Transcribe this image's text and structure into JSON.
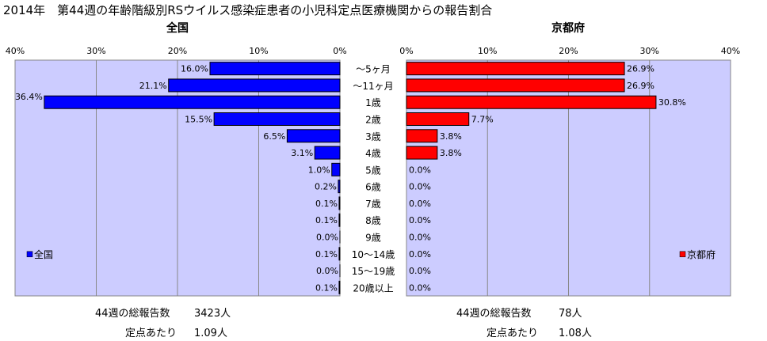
{
  "title": "2014年　第44週の年齢階級別RSウイルス感染症患者の小児科定点医療機関からの報告割合",
  "chart_data": [
    {
      "type": "bar",
      "orientation": "horizontal",
      "direction": "right-to-left",
      "title": "全国",
      "categories": [
        "〜5ヶ月",
        "〜11ヶ月",
        "1歳",
        "2歳",
        "3歳",
        "4歳",
        "5歳",
        "6歳",
        "7歳",
        "8歳",
        "9歳",
        "10〜14歳",
        "15〜19歳",
        "20歳以上"
      ],
      "values": [
        16.0,
        21.1,
        36.4,
        15.5,
        6.5,
        3.1,
        1.0,
        0.2,
        0.1,
        0.1,
        0.0,
        0.1,
        0.0,
        0.1
      ],
      "value_labels": [
        "16.0%",
        "21.1%",
        "36.4%",
        "15.5%",
        "6.5%",
        "3.1%",
        "1.0%",
        "0.2%",
        "0.1%",
        "0.1%",
        "0.0%",
        "0.1%",
        "0.0%",
        "0.1%"
      ],
      "xlim": [
        0,
        40
      ],
      "ticks": [
        "40%",
        "30%",
        "20%",
        "10%",
        "0%"
      ],
      "tick_values": [
        40,
        30,
        20,
        10,
        0
      ],
      "grid": true,
      "legend": "bottom-left",
      "series": [
        {
          "name": "全国",
          "color": "#0000ff"
        }
      ]
    },
    {
      "type": "bar",
      "orientation": "horizontal",
      "direction": "left-to-right",
      "title": "京都府",
      "categories": [
        "〜5ヶ月",
        "〜11ヶ月",
        "1歳",
        "2歳",
        "3歳",
        "4歳",
        "5歳",
        "6歳",
        "7歳",
        "8歳",
        "9歳",
        "10〜14歳",
        "15〜19歳",
        "20歳以上"
      ],
      "values": [
        26.9,
        26.9,
        30.8,
        7.7,
        3.8,
        3.8,
        0.0,
        0.0,
        0.0,
        0.0,
        0.0,
        0.0,
        0.0,
        0.0
      ],
      "value_labels": [
        "26.9%",
        "26.9%",
        "30.8%",
        "7.7%",
        "3.8%",
        "3.8%",
        "0.0%",
        "0.0%",
        "0.0%",
        "0.0%",
        "0.0%",
        "0.0%",
        "0.0%",
        "0.0%"
      ],
      "xlim": [
        0,
        40
      ],
      "ticks": [
        "0%",
        "10%",
        "20%",
        "30%",
        "40%"
      ],
      "tick_values": [
        0,
        10,
        20,
        30,
        40
      ],
      "grid": true,
      "legend": "bottom-right",
      "series": [
        {
          "name": "京都府",
          "color": "#ff0000"
        }
      ]
    }
  ],
  "footer": {
    "national_total_label": "44週の総報告数",
    "national_total_value": "3423人",
    "national_per_label": "定点あたり",
    "national_per_value": "1.09人",
    "kyoto_total_label": "44週の総報告数",
    "kyoto_total_value": "78人",
    "kyoto_per_label": "定点あたり",
    "kyoto_per_value": "1.08人"
  },
  "colors": {
    "plot_bg": "#ccccff",
    "grid": "#888888",
    "national_bar": "#0000ff",
    "kyoto_bar": "#ff0000"
  }
}
